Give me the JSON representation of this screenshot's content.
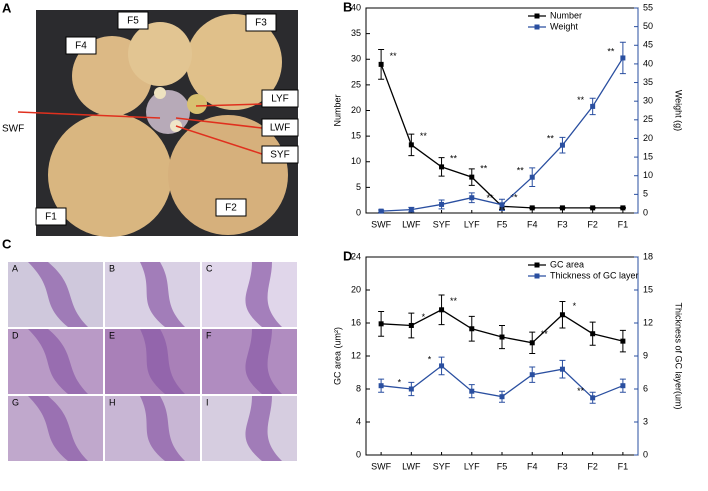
{
  "panels": {
    "A": {
      "letter": "A",
      "labels": {
        "F5": "F5",
        "F3": "F3",
        "F4": "F4",
        "LYF": "LYF",
        "SWF": "SWF",
        "LWF": "LWF",
        "SYF": "SYF",
        "F1": "F1",
        "F2": "F2"
      }
    },
    "C": {
      "letter": "C",
      "labels": [
        "A",
        "B",
        "C",
        "D",
        "E",
        "F",
        "G",
        "H",
        "I"
      ]
    }
  },
  "chart_data": [
    {
      "type": "line",
      "panel": "B",
      "ylabel": "Number",
      "y2label": "Weight (g)",
      "categories": [
        "SWF",
        "LWF",
        "SYF",
        "LYF",
        "F5",
        "F4",
        "F3",
        "F2",
        "F1"
      ],
      "ylim": [
        0,
        40
      ],
      "yticks": [
        0,
        5,
        10,
        15,
        20,
        25,
        30,
        35,
        40
      ],
      "y2lim": [
        0,
        55
      ],
      "y2ticks": [
        0,
        5,
        10,
        15,
        20,
        25,
        30,
        35,
        40,
        45,
        50,
        55
      ],
      "legend": "upper right",
      "series": [
        {
          "name": "Number",
          "color": "#000000",
          "values": [
            29,
            13.3,
            9,
            7,
            1.3,
            1,
            1,
            1,
            1
          ],
          "errors": [
            2.9,
            2.1,
            1.8,
            1.6,
            0.6,
            0.1,
            0.1,
            0.1,
            0.1
          ],
          "annotations": [
            "**",
            "**",
            "**",
            "**",
            "**",
            null,
            null,
            null,
            null
          ]
        },
        {
          "name": "Weight",
          "color": "#2a4fa0",
          "axis": "y2",
          "values": [
            0.5,
            0.9,
            2.3,
            4.1,
            2.2,
            9.6,
            18.2,
            28.6,
            41.6
          ],
          "errors": [
            0.3,
            0.6,
            1.2,
            1.3,
            1.5,
            2.5,
            2.1,
            2.2,
            4.2
          ],
          "annotations": [
            null,
            null,
            null,
            null,
            "**",
            "**",
            "**",
            "**",
            "**"
          ]
        }
      ]
    },
    {
      "type": "line",
      "panel": "D",
      "ylabel": "GC area (um²)",
      "y2label": "Thickness of GC layer(um)",
      "categories": [
        "SWF",
        "LWF",
        "SYF",
        "LYF",
        "F5",
        "F4",
        "F3",
        "F2",
        "F1"
      ],
      "ylim": [
        0,
        24
      ],
      "yticks": [
        0,
        4,
        8,
        12,
        16,
        20,
        24
      ],
      "y2lim": [
        0,
        18
      ],
      "y2ticks": [
        0,
        3,
        6,
        9,
        12,
        15,
        18
      ],
      "legend": "upper right",
      "series": [
        {
          "name": "GC area",
          "color": "#000000",
          "values": [
            15.9,
            15.7,
            17.6,
            15.3,
            14.3,
            13.6,
            17.0,
            14.7,
            13.8
          ],
          "errors": [
            1.5,
            1.5,
            1.8,
            1.5,
            1.4,
            1.3,
            1.6,
            1.4,
            1.3
          ],
          "annotations": [
            null,
            "*",
            "**",
            null,
            null,
            "**",
            "*",
            null,
            null
          ]
        },
        {
          "name": "Thickness of GC layer",
          "color": "#2a4fa0",
          "axis": "y2",
          "values": [
            6.3,
            6.0,
            8.1,
            5.8,
            5.3,
            7.3,
            7.8,
            5.2,
            6.3
          ],
          "errors": [
            0.6,
            0.6,
            0.8,
            0.6,
            0.5,
            0.7,
            0.8,
            0.5,
            0.6
          ],
          "annotations": [
            null,
            "*",
            "*",
            null,
            null,
            null,
            null,
            "**",
            null
          ]
        }
      ]
    }
  ]
}
